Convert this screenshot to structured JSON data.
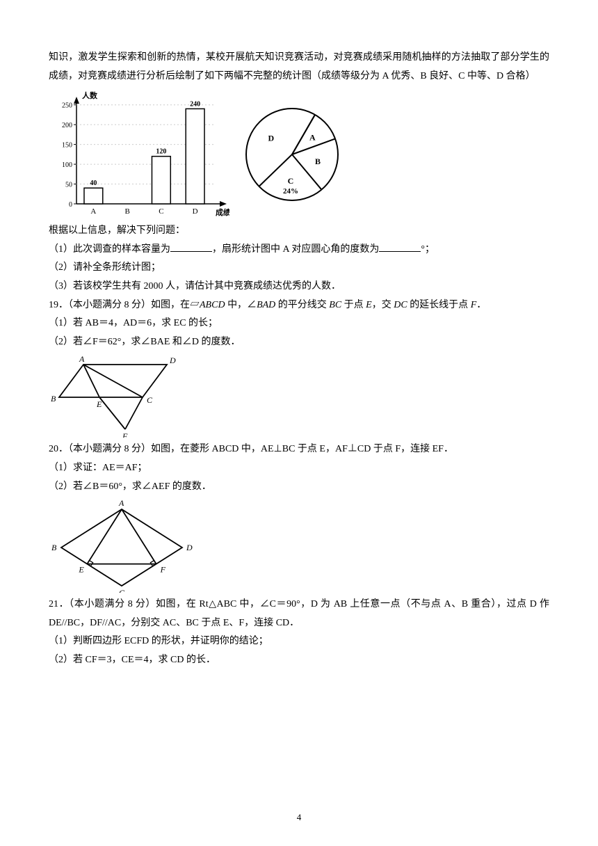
{
  "intro": {
    "p1": "知识，激发学生探索和创新的热情，某校开展航天知识竞赛活动，对竞赛成绩采用随机抽样的方法抽取了部分学生的成绩，对竞赛成绩进行分析后绘制了如下两幅不完整的统计图（成绩等级分为 A 优秀、B 良好、C 中等、D 合格）"
  },
  "barChart": {
    "type": "bar",
    "yLabel": "人数",
    "xLabel": "成绩等级",
    "categories": [
      "A",
      "B",
      "C",
      "D"
    ],
    "values": [
      40,
      null,
      120,
      240
    ],
    "labels": [
      "40",
      "",
      "120",
      "240"
    ],
    "yTicks": [
      0,
      50,
      100,
      150,
      200,
      250
    ],
    "ylim": [
      0,
      260
    ],
    "bar_color": "#ffffff",
    "bar_border": "#000000",
    "axis_color": "#000000",
    "text_color": "#000000",
    "bar_width": 0.55,
    "title_fontsize": 11,
    "tick_fontsize": 10
  },
  "pieChart": {
    "type": "pie",
    "slices": [
      {
        "label": "A",
        "angle": 40
      },
      {
        "label": "B",
        "angle": 70
      },
      {
        "label": "C",
        "angle": 86,
        "value_label": "24%"
      },
      {
        "label": "D",
        "angle": 164
      }
    ],
    "fill": "#ffffff",
    "stroke": "#000000",
    "label_fontsize": 12
  },
  "q18": {
    "lead": "根据以上信息，解决下列问题：",
    "i1a": "（1）此次调查的样本容量为",
    "i1b": "，扇形统计图中 A 对应圆心角的度数为",
    "i1c": "°；",
    "i2": "（2）请补全条形统计图；",
    "i3": "（3）若该校学生共有 2000 人，请估计其中竞赛成绩达优秀的人数．"
  },
  "q19": {
    "head_a": "19．（本小题满分 8 分）如图，在▱",
    "head_b": "ABCD",
    "head_c": " 中，∠",
    "head_d": "BAD",
    "head_e": " 的平分线交 ",
    "head_f": "BC",
    "head_g": " 于点 ",
    "head_h": "E",
    "head_i": "，交 ",
    "head_j": "DC",
    "head_k": " 的延长线于点 ",
    "head_l": "F",
    "head_m": "．",
    "i1": "（1）若 AB＝4，AD＝6，求 EC 的长；",
    "i2": "（2）若∠F＝62°，求∠BAE 和∠D 的度数．",
    "figLabels": {
      "A": "A",
      "B": "B",
      "C": "C",
      "D": "D",
      "E": "E",
      "F": "F"
    }
  },
  "q20": {
    "head": "20．（本小题满分 8 分）如图，在菱形 ABCD 中，AE⊥BC 于点 E，AF⊥CD 于点 F，连接 EF．",
    "i1": "（1）求证：AE＝AF；",
    "i2": "（2）若∠B＝60°，求∠AEF 的度数．",
    "figLabels": {
      "A": "A",
      "B": "B",
      "C": "C",
      "D": "D",
      "E": "E",
      "F": "F"
    }
  },
  "q21": {
    "head": "21．（本小题满分 8 分）如图，在 Rt△ABC 中，∠C＝90°，D 为 AB 上任意一点（不与点 A、B 重合），过点 D 作 DE//BC，DF//AC，分别交 AC、BC 于点 E、F，连接 CD．",
    "i1": "（1）判断四边形 ECFD 的形状，并证明你的结论；",
    "i2": "（2）若 CF＝3，CE＝4，求 CD 的长．"
  },
  "pageNumber": "4"
}
